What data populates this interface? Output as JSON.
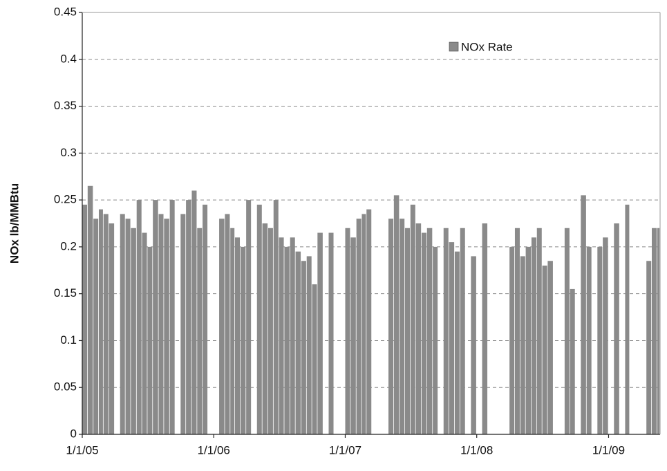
{
  "chart_data": {
    "type": "bar",
    "y_label": "NOx lb/MMBtu",
    "x": [
      "1/1/05",
      "1/16/05",
      "2/1/05",
      "2/16/05",
      "3/1/05",
      "3/16/05",
      "4/1/05",
      "4/16/05",
      "5/1/05",
      "5/16/05",
      "6/1/05",
      "6/16/05",
      "7/1/05",
      "7/16/05",
      "8/1/05",
      "8/16/05",
      "9/1/05",
      "9/16/05",
      "10/1/05",
      "10/16/05",
      "11/1/05",
      "11/16/05",
      "12/1/05",
      "12/16/05",
      "1/1/06",
      "1/16/06",
      "2/1/06",
      "2/16/06",
      "3/1/06",
      "3/16/06",
      "4/1/06",
      "4/16/06",
      "5/1/06",
      "5/16/06",
      "6/1/06",
      "6/16/06",
      "7/1/06",
      "7/16/06",
      "8/1/06",
      "8/16/06",
      "9/1/06",
      "9/16/06",
      "10/1/06",
      "10/16/06",
      "11/1/06",
      "11/16/06",
      "12/1/06",
      "12/16/06",
      "1/1/07",
      "1/16/07",
      "2/1/07",
      "2/16/07",
      "3/1/07",
      "3/16/07",
      "4/1/07",
      "4/16/07",
      "5/1/07",
      "5/16/07",
      "6/1/07",
      "6/16/07",
      "7/1/07",
      "7/16/07",
      "8/1/07",
      "8/16/07",
      "9/1/07",
      "9/16/07",
      "10/1/07",
      "10/16/07",
      "11/1/07",
      "11/16/07",
      "12/1/07",
      "12/16/07",
      "1/1/08",
      "1/16/08",
      "2/1/08",
      "2/16/08",
      "3/1/08",
      "3/16/08",
      "4/1/08",
      "4/16/08",
      "5/1/08",
      "5/16/08",
      "6/1/08",
      "6/16/08",
      "7/1/08",
      "7/16/08",
      "8/1/08",
      "8/16/08",
      "9/1/08",
      "9/16/08",
      "10/1/08",
      "10/16/08",
      "11/1/08",
      "11/16/08",
      "12/1/08",
      "12/16/08",
      "1/1/09",
      "1/16/09",
      "2/1/09",
      "2/16/09",
      "3/1/09",
      "3/16/09",
      "4/1/09",
      "4/16/09",
      "5/1/09",
      "5/16/09"
    ],
    "series": [
      {
        "name": "NOx Rate",
        "color": "#8a8a8a",
        "values": [
          0.245,
          0.265,
          0.23,
          0.24,
          0.235,
          0.225,
          null,
          0.235,
          0.23,
          0.22,
          0.25,
          0.215,
          0.2,
          0.25,
          0.235,
          0.23,
          0.25,
          null,
          0.235,
          0.25,
          0.26,
          0.22,
          0.245,
          null,
          null,
          0.23,
          0.235,
          0.22,
          0.21,
          0.2,
          0.25,
          null,
          0.245,
          0.225,
          0.22,
          0.25,
          0.21,
          0.2,
          0.21,
          0.195,
          0.185,
          0.19,
          0.16,
          0.215,
          null,
          0.215,
          null,
          null,
          0.22,
          0.21,
          0.23,
          0.235,
          0.24,
          null,
          null,
          null,
          0.23,
          0.255,
          0.23,
          0.22,
          0.245,
          0.225,
          0.215,
          0.22,
          0.2,
          null,
          0.22,
          0.205,
          0.195,
          0.22,
          null,
          0.19,
          null,
          0.225,
          null,
          null,
          null,
          null,
          0.2,
          0.22,
          0.19,
          0.2,
          0.21,
          0.22,
          0.18,
          0.185,
          null,
          null,
          0.22,
          0.155,
          null,
          0.255,
          0.2,
          null,
          0.2,
          0.21,
          null,
          0.225,
          null,
          0.245,
          null,
          null,
          null,
          0.185,
          0.22,
          0.22
        ]
      }
    ],
    "xlim": [
      "1/1/05",
      "5/24/09"
    ],
    "xticks": [
      "1/1/05",
      "1/1/06",
      "1/1/07",
      "1/1/08",
      "1/1/09"
    ],
    "ylim": [
      0,
      0.45
    ],
    "yticks": [
      0,
      0.05,
      0.1,
      0.15,
      0.2,
      0.25,
      0.3,
      0.35,
      0.4,
      0.45
    ],
    "grid": true,
    "legend": "top-right"
  }
}
